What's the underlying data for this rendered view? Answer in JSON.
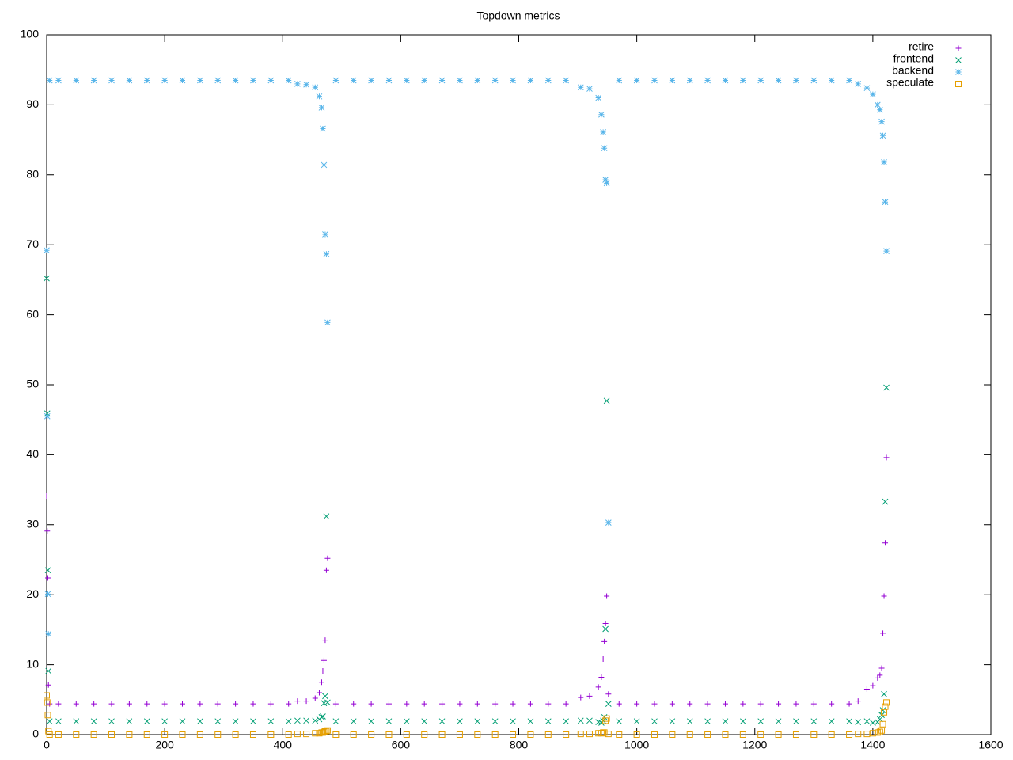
{
  "chart_data": {
    "type": "scatter",
    "title": "Topdown metrics",
    "xlim": [
      0,
      1600
    ],
    "xticks": [
      0,
      200,
      400,
      600,
      800,
      1000,
      1200,
      1400,
      1600
    ],
    "ylim": [
      0,
      100
    ],
    "yticks": [
      0,
      10,
      20,
      30,
      40,
      50,
      60,
      70,
      80,
      90,
      100
    ],
    "grid": false,
    "legend": "top-right",
    "x": [
      0,
      1,
      2,
      3,
      5,
      20,
      50,
      80,
      110,
      140,
      170,
      200,
      230,
      260,
      290,
      320,
      350,
      380,
      410,
      425,
      440,
      455,
      462,
      466,
      468,
      470,
      472,
      474,
      476,
      490,
      520,
      550,
      580,
      610,
      640,
      670,
      700,
      730,
      760,
      790,
      820,
      850,
      880,
      905,
      920,
      935,
      940,
      943,
      945,
      947,
      949,
      952,
      970,
      1000,
      1030,
      1060,
      1090,
      1120,
      1150,
      1180,
      1210,
      1240,
      1270,
      1300,
      1330,
      1360,
      1375,
      1390,
      1400,
      1408,
      1412,
      1415,
      1417,
      1419,
      1421,
      1423
    ],
    "series": [
      {
        "name": "retire",
        "color": "#9400d3",
        "marker": "plus",
        "values": [
          34.1,
          29.1,
          22.4,
          7.1,
          4.4,
          4.4,
          4.4,
          4.4,
          4.4,
          4.4,
          4.4,
          4.4,
          4.4,
          4.4,
          4.4,
          4.4,
          4.4,
          4.4,
          4.4,
          4.8,
          4.8,
          5.2,
          6.0,
          7.5,
          9.1,
          10.6,
          13.5,
          23.5,
          25.2,
          4.4,
          4.4,
          4.4,
          4.4,
          4.4,
          4.4,
          4.4,
          4.4,
          4.4,
          4.4,
          4.4,
          4.4,
          4.4,
          4.4,
          5.3,
          5.5,
          6.8,
          8.2,
          10.8,
          13.3,
          15.9,
          19.8,
          5.8,
          4.4,
          4.4,
          4.4,
          4.4,
          4.4,
          4.4,
          4.4,
          4.4,
          4.4,
          4.4,
          4.4,
          4.4,
          4.4,
          4.4,
          4.8,
          6.5,
          7.0,
          8.1,
          8.5,
          9.5,
          14.5,
          19.8,
          27.4,
          39.6
        ]
      },
      {
        "name": "frontend",
        "color": "#009e73",
        "marker": "cross",
        "values": [
          65.2,
          45.9,
          23.5,
          9.1,
          1.9,
          1.9,
          1.9,
          1.9,
          1.9,
          1.9,
          1.9,
          1.9,
          1.9,
          1.9,
          1.9,
          1.9,
          1.9,
          1.9,
          1.9,
          2.0,
          2.0,
          2.0,
          2.2,
          2.5,
          2.6,
          4.5,
          5.5,
          31.2,
          4.6,
          1.9,
          1.9,
          1.9,
          1.9,
          1.9,
          1.9,
          1.9,
          1.9,
          1.9,
          1.9,
          1.9,
          1.9,
          1.9,
          1.9,
          2.0,
          2.0,
          1.8,
          1.7,
          2.0,
          2.5,
          15.1,
          47.7,
          4.4,
          1.9,
          1.9,
          1.9,
          1.9,
          1.9,
          1.9,
          1.9,
          1.9,
          1.9,
          1.9,
          1.9,
          1.9,
          1.9,
          1.9,
          1.8,
          1.9,
          1.7,
          1.8,
          2.2,
          2.8,
          3.5,
          5.8,
          33.3,
          49.6
        ]
      },
      {
        "name": "backend",
        "color": "#56b4e9",
        "marker": "star",
        "values": [
          69.2,
          45.5,
          20.1,
          14.4,
          93.5,
          93.5,
          93.5,
          93.5,
          93.5,
          93.5,
          93.5,
          93.5,
          93.5,
          93.5,
          93.5,
          93.5,
          93.5,
          93.5,
          93.5,
          93.0,
          92.9,
          92.5,
          91.2,
          89.6,
          86.6,
          81.4,
          71.5,
          68.7,
          58.9,
          93.5,
          93.5,
          93.5,
          93.5,
          93.5,
          93.5,
          93.5,
          93.5,
          93.5,
          93.5,
          93.5,
          93.5,
          93.5,
          93.5,
          92.5,
          92.3,
          91.0,
          88.6,
          86.1,
          83.8,
          79.3,
          78.8,
          30.3,
          93.5,
          93.5,
          93.5,
          93.5,
          93.5,
          93.5,
          93.5,
          93.5,
          93.5,
          93.5,
          93.5,
          93.5,
          93.5,
          93.5,
          93.0,
          92.4,
          91.5,
          90.0,
          89.3,
          87.6,
          85.6,
          81.8,
          76.1,
          69.1
        ]
      },
      {
        "name": "speculate",
        "color": "#e69f00",
        "marker": "square",
        "values": [
          5.6,
          4.6,
          2.8,
          0.5,
          0,
          0,
          0,
          0,
          0,
          0,
          0,
          0,
          0,
          0,
          0,
          0,
          0,
          0,
          0,
          0.1,
          0.1,
          0.2,
          0.2,
          0.3,
          0.3,
          0.4,
          0.5,
          0.5,
          0.6,
          0,
          0,
          0,
          0,
          0,
          0,
          0,
          0,
          0,
          0,
          0,
          0,
          0,
          0,
          0.1,
          0.1,
          0.2,
          0.2,
          0.3,
          0.3,
          2.0,
          2.3,
          0.1,
          0,
          0,
          0,
          0,
          0,
          0,
          0,
          0,
          0,
          0,
          0,
          0,
          0,
          0,
          0.1,
          0.1,
          0.2,
          0.3,
          0.4,
          0.6,
          1.5,
          3.2,
          4.0,
          4.6
        ]
      }
    ]
  }
}
